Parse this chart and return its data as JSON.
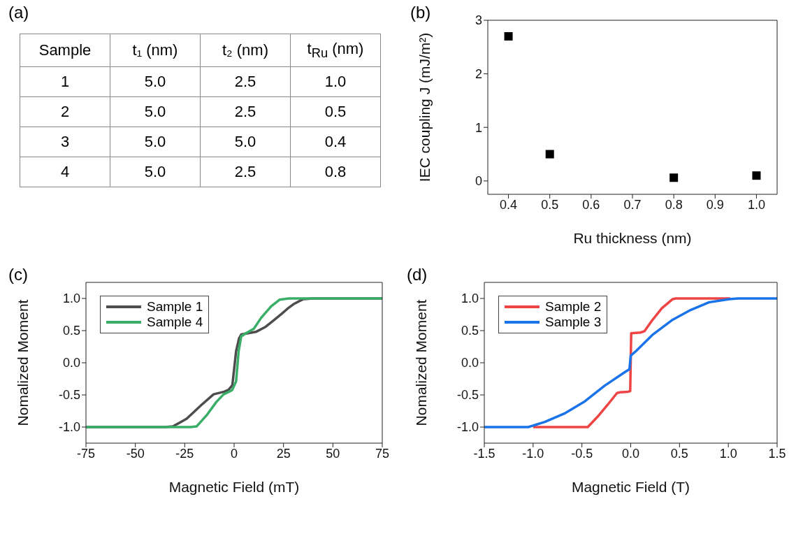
{
  "chart_data": [
    {
      "type": "heatmap",
      "title": "(a)",
      "ylabel": "Sample",
      "categories": [
        "t₁ (nm)",
        "t₂ (nm)",
        "t$_{Ru}$ (nm)"
      ],
      "y_categories": [
        "1",
        "2",
        "3",
        "4"
      ],
      "cells": [
        [
          5.0,
          2.5,
          1.0
        ],
        [
          5.0,
          2.5,
          0.5
        ],
        [
          5.0,
          5.0,
          0.4
        ],
        [
          5.0,
          2.5,
          0.8
        ]
      ],
      "cell_labels": [
        [
          "5.0",
          "2.5",
          "1.0"
        ],
        [
          "5.0",
          "2.5",
          "0.5"
        ],
        [
          "5.0",
          "5.0",
          "0.4"
        ],
        [
          "5.0",
          "2.5",
          "0.8"
        ]
      ]
    },
    {
      "type": "scatter",
      "title": "(b)",
      "xlabel": "Ru thickness (nm)",
      "ylabel": "IEC coupling J (mJ/m²)",
      "marker": "square",
      "grid": false,
      "legend": false,
      "xlim": [
        0.35,
        1.05
      ],
      "xticks": [
        0.4,
        0.5,
        0.6,
        0.7,
        0.8,
        0.9,
        {
          "value": 1,
          "label": "1.0"
        }
      ],
      "ylim": [
        -0.25,
        3
      ],
      "yticks": [
        0,
        1,
        2,
        3
      ],
      "series": [
        {
          "color": "#000000",
          "x": [
            0.4,
            0.5,
            0.8,
            1.0
          ],
          "values": [
            2.7,
            0.5,
            0.06,
            0.1
          ]
        }
      ]
    },
    {
      "type": "line",
      "title": "(c)",
      "xlabel": "Magnetic Field (mT)",
      "ylabel": "Nomalized Moment",
      "marker": "none",
      "line_style": "solid",
      "grid": false,
      "legend": "top left",
      "xlim": [
        -75,
        75
      ],
      "xticks": [
        -75,
        -50,
        -25,
        0,
        25,
        50,
        75
      ],
      "ylim": [
        -1.25,
        1.25
      ],
      "yticks": [
        {
          "value": -1,
          "label": "-1.0"
        },
        -0.5,
        {
          "value": 0,
          "label": "0.0"
        },
        0.5,
        {
          "value": 1,
          "label": "1.0"
        }
      ],
      "series": [
        {
          "name": "Sample 1",
          "color": "#4d4d4d",
          "x": [
            -75,
            -35,
            -31,
            -24,
            -16.7,
            -10.4,
            -5,
            -2.8,
            -0.9,
            1,
            2.5,
            3.6,
            7,
            11,
            16,
            20,
            24,
            27,
            30,
            35,
            40,
            75
          ],
          "values": [
            -1,
            -1,
            -0.99,
            -0.87,
            -0.66,
            -0.49,
            -0.45,
            -0.42,
            -0.35,
            0.18,
            0.38,
            0.44,
            0.46,
            0.48,
            0.56,
            0.66,
            0.76,
            0.84,
            0.91,
            0.99,
            1,
            1
          ]
        },
        {
          "name": "Sample 4",
          "color": "#3aae67",
          "x": [
            -75,
            -22,
            -19,
            -14,
            -9,
            -5.3,
            -2.5,
            -0.9,
            1,
            2.3,
            3.6,
            6,
            10,
            13.7,
            18.8,
            23,
            27.7,
            75
          ],
          "values": [
            -1,
            -1,
            -0.99,
            -0.82,
            -0.61,
            -0.49,
            -0.45,
            -0.42,
            -0.29,
            0.18,
            0.41,
            0.46,
            0.53,
            0.7,
            0.88,
            0.98,
            1,
            1
          ]
        }
      ]
    },
    {
      "type": "line",
      "title": "(d)",
      "xlabel": "Magnetic Field (T)",
      "ylabel": "Nomalized Moment",
      "marker": "none",
      "line_style": "solid",
      "grid": false,
      "legend": "top left",
      "xlim": [
        -1.5,
        1.5
      ],
      "xticks": [
        -1.5,
        {
          "value": -1,
          "label": "-1.0"
        },
        -0.5,
        {
          "value": 0,
          "label": "0.0"
        },
        0.5,
        {
          "value": 1,
          "label": "1.0"
        },
        1.5
      ],
      "ylim": [
        -1.25,
        1.25
      ],
      "yticks": [
        {
          "value": -1,
          "label": "-1.0"
        },
        -0.5,
        {
          "value": 0,
          "label": "0.0"
        },
        0.5,
        {
          "value": 1,
          "label": "1.0"
        }
      ],
      "series": [
        {
          "name": "Sample 2",
          "color": "#ee4444",
          "x": [
            -1.0,
            -0.44,
            -0.34,
            -0.24,
            -0.14,
            -0.11,
            -0.025,
            -0.005,
            0.005,
            0.1,
            0.14,
            0.22,
            0.32,
            0.43,
            0.46,
            1.02
          ],
          "values": [
            -1,
            -1,
            -0.84,
            -0.66,
            -0.47,
            -0.46,
            -0.45,
            -0.44,
            0.46,
            0.47,
            0.49,
            0.66,
            0.85,
            0.99,
            1,
            1
          ]
        },
        {
          "name": "Sample 3",
          "color": "#1a73e8",
          "x": [
            -1.5,
            -1.05,
            -0.88,
            -0.68,
            -0.47,
            -0.27,
            -0.064,
            -0.013,
            0.0,
            0.06,
            0.22,
            0.42,
            0.6,
            0.8,
            1.01,
            1.1,
            1.5
          ],
          "values": [
            -1,
            -1,
            -0.92,
            -0.79,
            -0.6,
            -0.36,
            -0.15,
            -0.1,
            0.11,
            0.19,
            0.43,
            0.66,
            0.81,
            0.94,
            0.99,
            1,
            1
          ]
        }
      ]
    }
  ]
}
